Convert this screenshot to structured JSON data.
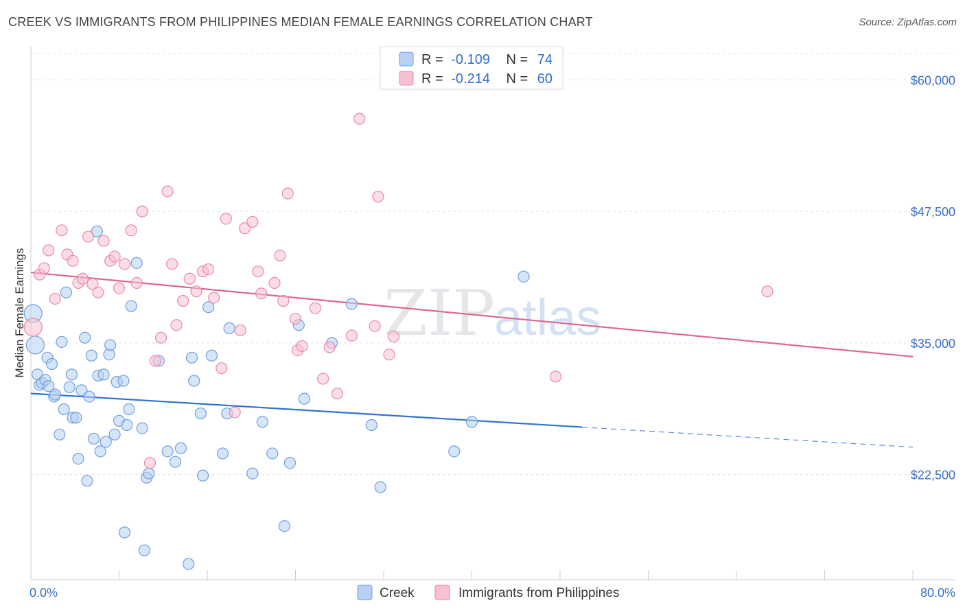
{
  "title": "CREEK VS IMMIGRANTS FROM PHILIPPINES MEDIAN FEMALE EARNINGS CORRELATION CHART",
  "source": "Source: ZipAtlas.com",
  "watermark": {
    "zip": "ZIP",
    "atlas": "atlas"
  },
  "chart_data": {
    "type": "scatter",
    "ylabel": "Median Female Earnings",
    "xlim": [
      0,
      80
    ],
    "ylim": [
      12500,
      62500
    ],
    "x_tick_labels": {
      "min": "0.0%",
      "max": "80.0%"
    },
    "y_ticks": [
      {
        "value": 22500,
        "label": "$22,500"
      },
      {
        "value": 35000,
        "label": "$35,000"
      },
      {
        "value": 47500,
        "label": "$47,500"
      },
      {
        "value": 60000,
        "label": "$60,000"
      }
    ],
    "legend": [
      {
        "series": "Creek",
        "r_label": "R =",
        "r": "-0.109",
        "n_label": "N =",
        "n": "74"
      },
      {
        "series": "Immigrants from Philippines",
        "r_label": "R =",
        "r": "-0.214",
        "n_label": "N =",
        "n": "60"
      }
    ],
    "series": [
      {
        "name": "Creek",
        "color": "#6f9fe3",
        "fill": "#b7d0f3",
        "line_color": "#2f72d0",
        "trend": {
          "x0": 0,
          "y0": 30200,
          "x1": 50,
          "y1": 27000,
          "dash_to_x": 80,
          "dash_to_y": 25100
        },
        "points": [
          [
            0.2,
            37800
          ],
          [
            0.4,
            34800
          ],
          [
            0.6,
            32000
          ],
          [
            0.8,
            31000
          ],
          [
            1.0,
            31200
          ],
          [
            1.3,
            31500
          ],
          [
            1.5,
            33600
          ],
          [
            1.6,
            30900
          ],
          [
            1.9,
            33000
          ],
          [
            2.1,
            29900
          ],
          [
            2.2,
            30100
          ],
          [
            2.6,
            26300
          ],
          [
            2.8,
            35100
          ],
          [
            3.0,
            28700
          ],
          [
            3.2,
            39800
          ],
          [
            3.5,
            30800
          ],
          [
            3.7,
            32000
          ],
          [
            3.8,
            27900
          ],
          [
            4.1,
            27900
          ],
          [
            4.3,
            24000
          ],
          [
            4.6,
            30500
          ],
          [
            4.9,
            35500
          ],
          [
            5.1,
            21900
          ],
          [
            5.3,
            29900
          ],
          [
            5.5,
            33800
          ],
          [
            5.7,
            25900
          ],
          [
            6.0,
            45600
          ],
          [
            6.1,
            31900
          ],
          [
            6.3,
            24700
          ],
          [
            6.6,
            32000
          ],
          [
            6.8,
            25600
          ],
          [
            7.1,
            33900
          ],
          [
            7.2,
            34800
          ],
          [
            7.6,
            26300
          ],
          [
            7.8,
            31300
          ],
          [
            8.0,
            27600
          ],
          [
            8.4,
            31400
          ],
          [
            8.5,
            17000
          ],
          [
            8.7,
            27200
          ],
          [
            8.9,
            28700
          ],
          [
            9.1,
            38500
          ],
          [
            9.6,
            42600
          ],
          [
            10.1,
            26900
          ],
          [
            10.3,
            15300
          ],
          [
            10.5,
            22200
          ],
          [
            10.7,
            22600
          ],
          [
            11.6,
            33300
          ],
          [
            12.4,
            24700
          ],
          [
            13.1,
            23700
          ],
          [
            13.6,
            25000
          ],
          [
            14.3,
            14000
          ],
          [
            14.6,
            33600
          ],
          [
            14.8,
            31400
          ],
          [
            15.4,
            28300
          ],
          [
            15.6,
            22400
          ],
          [
            16.1,
            38400
          ],
          [
            16.4,
            33800
          ],
          [
            17.4,
            24500
          ],
          [
            17.8,
            28300
          ],
          [
            18.0,
            36400
          ],
          [
            20.1,
            22600
          ],
          [
            21.0,
            27500
          ],
          [
            21.9,
            24500
          ],
          [
            23.0,
            17600
          ],
          [
            23.5,
            23600
          ],
          [
            24.3,
            36700
          ],
          [
            24.8,
            29700
          ],
          [
            27.3,
            35000
          ],
          [
            29.1,
            38700
          ],
          [
            30.9,
            27200
          ],
          [
            31.7,
            21300
          ],
          [
            38.4,
            24700
          ],
          [
            40.0,
            27500
          ],
          [
            44.7,
            41300
          ]
        ]
      },
      {
        "name": "Immigrants from Philippines",
        "color": "#e88aa8",
        "fill": "#f7c1d1",
        "line_color": "#e06690",
        "trend": {
          "x0": 0,
          "y0": 41700,
          "x1": 80,
          "y1": 33700
        },
        "points": [
          [
            0.2,
            36500
          ],
          [
            0.8,
            41500
          ],
          [
            1.2,
            42100
          ],
          [
            1.6,
            43800
          ],
          [
            2.2,
            39200
          ],
          [
            2.8,
            45700
          ],
          [
            3.3,
            43400
          ],
          [
            3.8,
            42800
          ],
          [
            4.3,
            40700
          ],
          [
            4.7,
            41100
          ],
          [
            5.2,
            45100
          ],
          [
            5.6,
            40600
          ],
          [
            6.1,
            39800
          ],
          [
            6.6,
            44700
          ],
          [
            7.2,
            42800
          ],
          [
            7.6,
            43200
          ],
          [
            8.0,
            40200
          ],
          [
            8.5,
            42500
          ],
          [
            9.1,
            45700
          ],
          [
            9.6,
            40700
          ],
          [
            10.1,
            47500
          ],
          [
            10.8,
            23600
          ],
          [
            11.3,
            33300
          ],
          [
            11.8,
            35500
          ],
          [
            12.4,
            49400
          ],
          [
            12.8,
            42500
          ],
          [
            13.2,
            36700
          ],
          [
            13.8,
            39000
          ],
          [
            14.4,
            41100
          ],
          [
            15.0,
            39900
          ],
          [
            15.6,
            41800
          ],
          [
            16.1,
            42000
          ],
          [
            16.6,
            39300
          ],
          [
            17.3,
            32600
          ],
          [
            17.7,
            46800
          ],
          [
            18.5,
            28400
          ],
          [
            19.0,
            36200
          ],
          [
            19.4,
            45900
          ],
          [
            20.1,
            46500
          ],
          [
            20.6,
            41800
          ],
          [
            20.9,
            39700
          ],
          [
            22.1,
            40700
          ],
          [
            22.6,
            43300
          ],
          [
            22.9,
            39000
          ],
          [
            23.3,
            49200
          ],
          [
            24.0,
            37300
          ],
          [
            24.2,
            34300
          ],
          [
            24.6,
            34700
          ],
          [
            25.8,
            38300
          ],
          [
            26.5,
            31600
          ],
          [
            27.1,
            34600
          ],
          [
            27.8,
            30200
          ],
          [
            29.1,
            35700
          ],
          [
            29.8,
            56300
          ],
          [
            31.2,
            36600
          ],
          [
            31.5,
            48900
          ],
          [
            32.5,
            33900
          ],
          [
            32.9,
            35600
          ],
          [
            47.6,
            31800
          ],
          [
            66.8,
            39900
          ]
        ]
      }
    ]
  }
}
